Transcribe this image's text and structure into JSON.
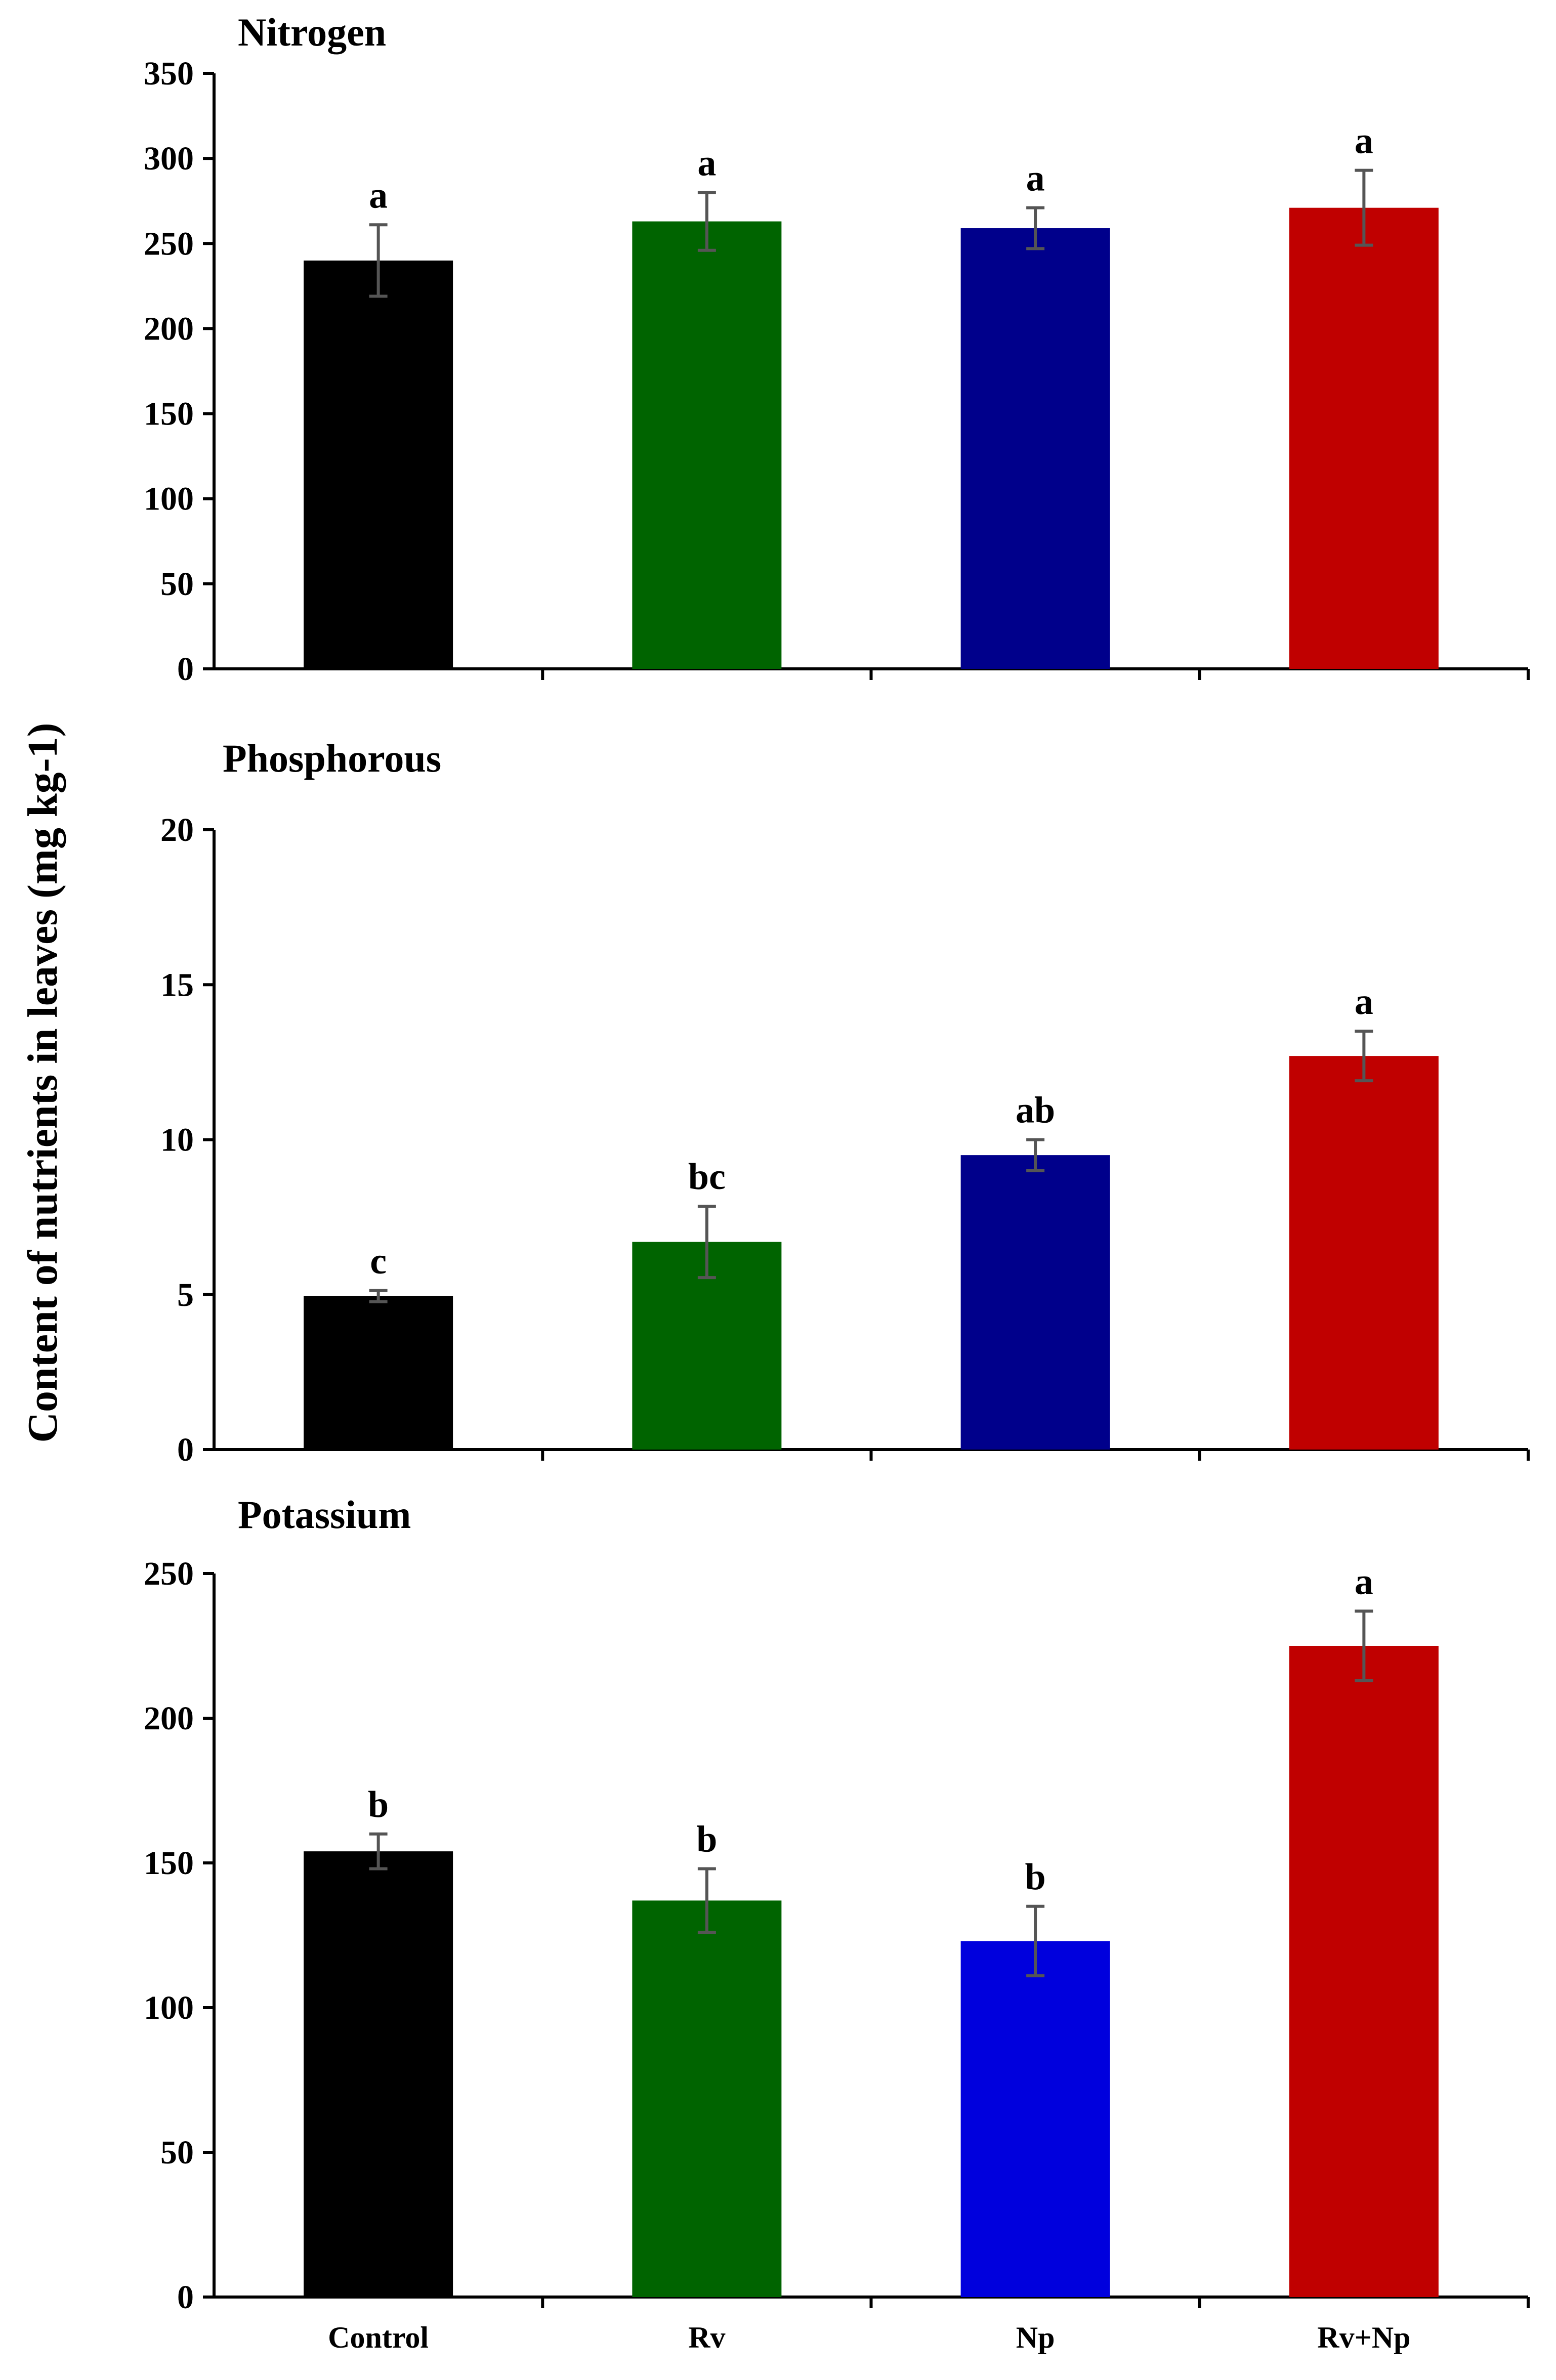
{
  "chart_data": {
    "type": "bar",
    "ylabel": "Content of nutrients in leaves (mg kg-1)",
    "categories": [
      "Control",
      "Rv",
      "Np",
      "Rv+Np"
    ],
    "panels": [
      {
        "title": "Nitrogen",
        "ylim": [
          0,
          350
        ],
        "yticks": [
          0,
          50,
          100,
          150,
          200,
          250,
          300,
          350
        ],
        "values": [
          240,
          263,
          259,
          271
        ],
        "errors": [
          21,
          17,
          12,
          22
        ],
        "letters": [
          "a",
          "a",
          "a",
          "a"
        ],
        "colors": [
          "#000000",
          "#006400",
          "#00008b",
          "#c00000"
        ]
      },
      {
        "title": "Phosphorous",
        "ylim": [
          0,
          20
        ],
        "yticks": [
          0,
          5,
          10,
          15,
          20
        ],
        "values": [
          4.95,
          6.7,
          9.5,
          12.7
        ],
        "errors": [
          0.18,
          1.15,
          0.5,
          0.8
        ],
        "letters": [
          "c",
          "bc",
          "ab",
          "a"
        ],
        "colors": [
          "#000000",
          "#006400",
          "#00008b",
          "#c00000"
        ]
      },
      {
        "title": "Potassium",
        "ylim": [
          0,
          250
        ],
        "yticks": [
          0,
          50,
          100,
          150,
          200,
          250
        ],
        "values": [
          154,
          137,
          123,
          225
        ],
        "errors": [
          6,
          11,
          12,
          12
        ],
        "letters": [
          "b",
          "b",
          "b",
          "a"
        ],
        "colors": [
          "#000000",
          "#006400",
          "#0000dd",
          "#c00000"
        ]
      }
    ]
  }
}
